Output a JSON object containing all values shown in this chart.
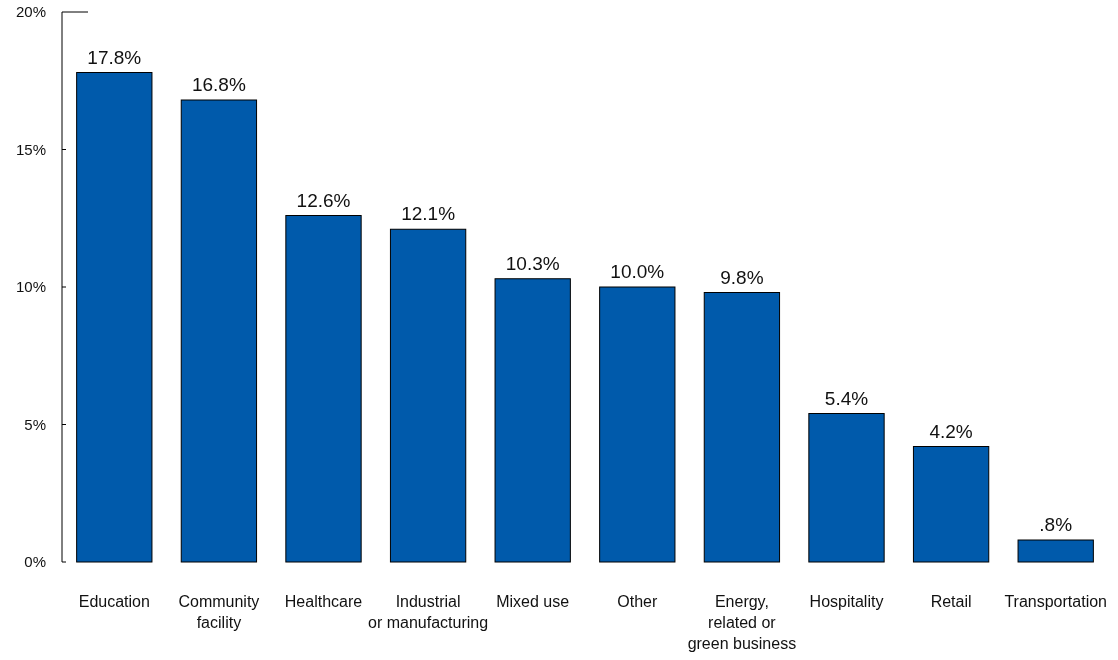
{
  "chart_data": {
    "type": "bar",
    "categories": [
      "Education",
      "Community\nfacility",
      "Healthcare",
      "Industrial\nor manufacturing",
      "Mixed use",
      "Other",
      "Energy,\nrelated or\ngreen business",
      "Hospitality",
      "Retail",
      "Transportation"
    ],
    "values": [
      17.8,
      16.8,
      12.6,
      12.1,
      10.3,
      10.0,
      9.8,
      5.4,
      4.2,
      0.8
    ],
    "value_labels": [
      "17.8%",
      "16.8%",
      "12.6%",
      "12.1%",
      "10.3%",
      "10.0%",
      "9.8%",
      "5.4%",
      "4.2%",
      ".8%"
    ],
    "color": "#005aab",
    "ylim": [
      0,
      20
    ],
    "yticks": [
      {
        "value": 0,
        "label": "0%"
      },
      {
        "value": 5,
        "label": "5%"
      },
      {
        "value": 10,
        "label": "10%"
      },
      {
        "value": 15,
        "label": "15%"
      },
      {
        "value": 20,
        "label": "20%"
      }
    ],
    "grid": false
  }
}
